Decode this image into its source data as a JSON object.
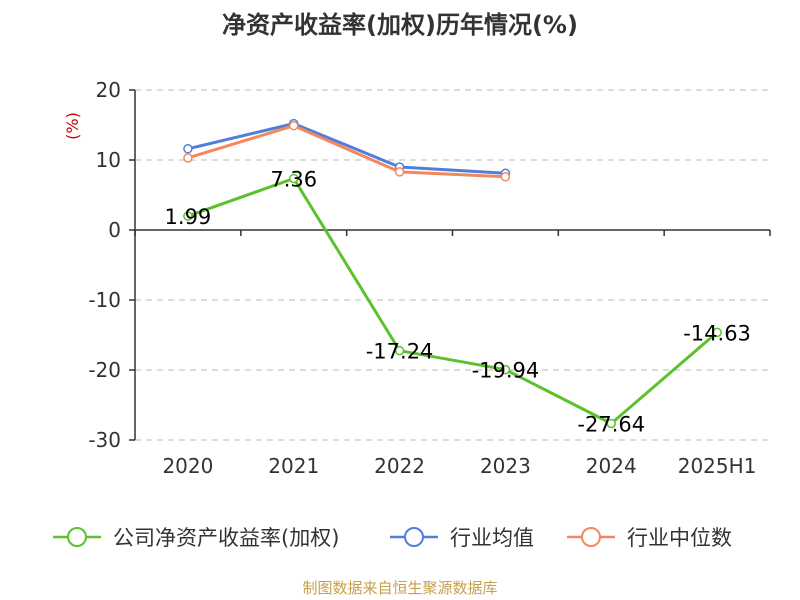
{
  "chart_data": {
    "type": "line",
    "title": "净资产收益率(加权)历年情况(%)",
    "unit_label": "(%)",
    "categories": [
      "2020",
      "2021",
      "2022",
      "2023",
      "2024",
      "2025H1"
    ],
    "ylim": [
      -30,
      20
    ],
    "yticks": [
      20,
      10,
      0,
      -10,
      -20,
      -30
    ],
    "grid": true,
    "legend_position": "bottom",
    "series": [
      {
        "name": "公司净资产收益率(加权)",
        "color": "#5cc12b",
        "values": [
          1.99,
          7.36,
          -17.24,
          -19.94,
          -27.64,
          -14.63
        ],
        "labels": [
          "1.99",
          "7.36",
          "-17.24",
          "-19.94",
          "-27.64",
          "-14.63"
        ]
      },
      {
        "name": "行业均值",
        "color": "#4f7fd9",
        "values": [
          11.6,
          15.2,
          9.0,
          8.1,
          null,
          null
        ]
      },
      {
        "name": "行业中位数",
        "color": "#f5875c",
        "values": [
          10.3,
          14.9,
          8.3,
          7.6,
          null,
          null
        ]
      }
    ]
  },
  "source": "制图数据来自恒生聚源数据库"
}
